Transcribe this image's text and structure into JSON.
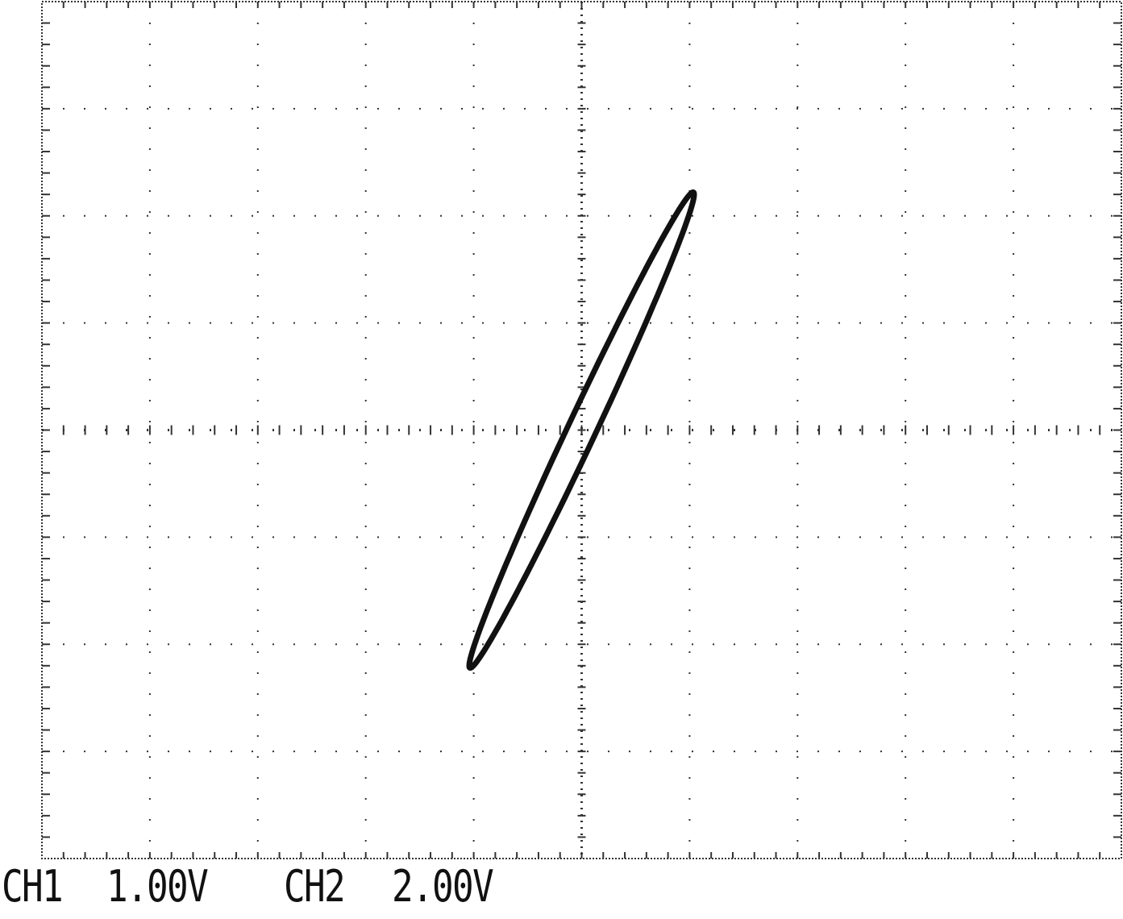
{
  "readout": {
    "ch1_label": "CH1",
    "ch1_volts": "1.00V",
    "ch2_label": "CH2",
    "ch2_volts": "2.00V"
  },
  "colors": {
    "background": "#ffffff",
    "graticule": "#333333",
    "trace": "#111111"
  },
  "chart_data": {
    "type": "scatter",
    "mode": "XY",
    "title": "",
    "xlabel": "",
    "ylabel": "",
    "grid": true,
    "graticule_divisions": {
      "x": 10,
      "y": 8
    },
    "x_scale_volts_per_div": 1.0,
    "y_scale_volts_per_div": 2.0,
    "xlim_div": [
      -5,
      5
    ],
    "ylim_div": [
      -4,
      4
    ],
    "trace_shape": "ellipse",
    "ellipse": {
      "center_div": [
        0.0,
        0.0
      ],
      "semi_major_div": 2.45,
      "semi_minor_div": 0.13,
      "tilt_deg": 65
    },
    "tips_div": [
      [
        0.8,
        2.2
      ],
      [
        -0.8,
        -2.2
      ]
    ]
  }
}
